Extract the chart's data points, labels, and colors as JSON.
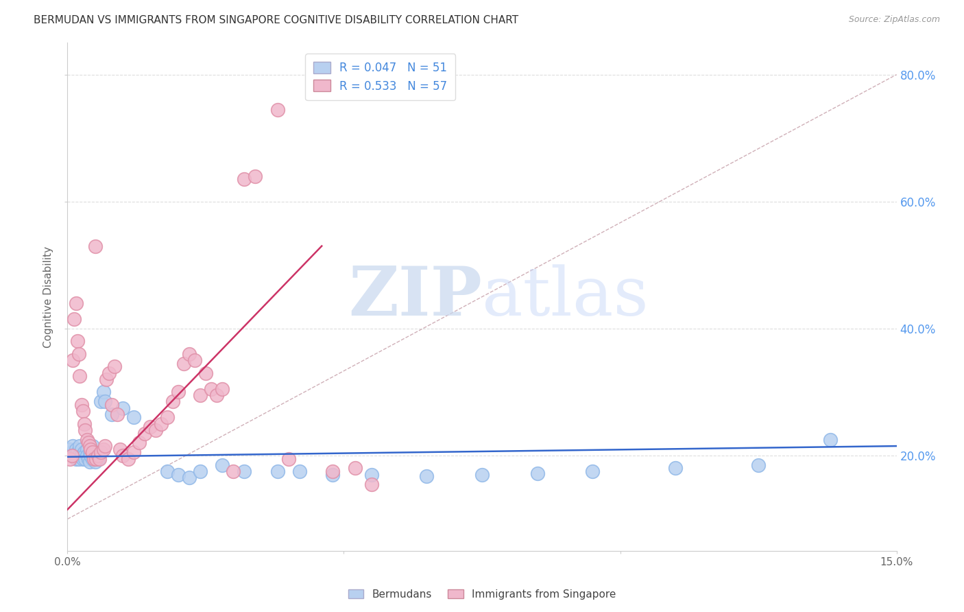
{
  "title": "BERMUDAN VS IMMIGRANTS FROM SINGAPORE COGNITIVE DISABILITY CORRELATION CHART",
  "source": "Source: ZipAtlas.com",
  "ylabel": "Cognitive Disability",
  "xmin": 0.0,
  "xmax": 0.15,
  "ymin": 0.05,
  "ymax": 0.85,
  "yticks": [
    0.2,
    0.4,
    0.6,
    0.8
  ],
  "ytick_labels": [
    "20.0%",
    "40.0%",
    "60.0%",
    "80.0%"
  ],
  "bermudan_color": "#b8d0f0",
  "bermudan_edge": "#90b8e8",
  "singapore_color": "#f0b8cc",
  "singapore_edge": "#e090a8",
  "trendline_bermudan_color": "#3366cc",
  "trendline_singapore_color": "#cc3366",
  "diagonal_color": "#d0b0b8",
  "watermark_zip": "ZIP",
  "watermark_atlas": "atlas",
  "bermudan_scatter": [
    [
      0.0005,
      0.21
    ],
    [
      0.0008,
      0.205
    ],
    [
      0.001,
      0.215
    ],
    [
      0.0012,
      0.2
    ],
    [
      0.0015,
      0.195
    ],
    [
      0.0015,
      0.21
    ],
    [
      0.0018,
      0.205
    ],
    [
      0.002,
      0.2
    ],
    [
      0.002,
      0.195
    ],
    [
      0.0022,
      0.215
    ],
    [
      0.0025,
      0.21
    ],
    [
      0.0025,
      0.2
    ],
    [
      0.0028,
      0.195
    ],
    [
      0.003,
      0.205
    ],
    [
      0.003,
      0.2
    ],
    [
      0.0032,
      0.195
    ],
    [
      0.0035,
      0.21
    ],
    [
      0.0035,
      0.2
    ],
    [
      0.0038,
      0.195
    ],
    [
      0.004,
      0.205
    ],
    [
      0.004,
      0.19
    ],
    [
      0.0042,
      0.2
    ],
    [
      0.0045,
      0.195
    ],
    [
      0.0045,
      0.215
    ],
    [
      0.0048,
      0.205
    ],
    [
      0.005,
      0.2
    ],
    [
      0.005,
      0.19
    ],
    [
      0.0055,
      0.195
    ],
    [
      0.006,
      0.285
    ],
    [
      0.0065,
      0.3
    ],
    [
      0.0068,
      0.285
    ],
    [
      0.008,
      0.265
    ],
    [
      0.01,
      0.275
    ],
    [
      0.012,
      0.26
    ],
    [
      0.018,
      0.175
    ],
    [
      0.02,
      0.17
    ],
    [
      0.022,
      0.165
    ],
    [
      0.024,
      0.175
    ],
    [
      0.028,
      0.185
    ],
    [
      0.032,
      0.175
    ],
    [
      0.038,
      0.175
    ],
    [
      0.042,
      0.175
    ],
    [
      0.048,
      0.17
    ],
    [
      0.055,
      0.17
    ],
    [
      0.065,
      0.168
    ],
    [
      0.075,
      0.17
    ],
    [
      0.085,
      0.172
    ],
    [
      0.095,
      0.175
    ],
    [
      0.11,
      0.18
    ],
    [
      0.125,
      0.185
    ],
    [
      0.138,
      0.225
    ]
  ],
  "singapore_scatter": [
    [
      0.0005,
      0.195
    ],
    [
      0.0008,
      0.2
    ],
    [
      0.001,
      0.35
    ],
    [
      0.0012,
      0.415
    ],
    [
      0.0015,
      0.44
    ],
    [
      0.0018,
      0.38
    ],
    [
      0.002,
      0.36
    ],
    [
      0.0022,
      0.325
    ],
    [
      0.0025,
      0.28
    ],
    [
      0.0028,
      0.27
    ],
    [
      0.003,
      0.25
    ],
    [
      0.0032,
      0.24
    ],
    [
      0.0035,
      0.225
    ],
    [
      0.0038,
      0.22
    ],
    [
      0.004,
      0.215
    ],
    [
      0.0042,
      0.21
    ],
    [
      0.0045,
      0.205
    ],
    [
      0.0048,
      0.195
    ],
    [
      0.005,
      0.53
    ],
    [
      0.0052,
      0.195
    ],
    [
      0.0055,
      0.2
    ],
    [
      0.0058,
      0.195
    ],
    [
      0.006,
      0.205
    ],
    [
      0.0065,
      0.21
    ],
    [
      0.0068,
      0.215
    ],
    [
      0.007,
      0.32
    ],
    [
      0.0075,
      0.33
    ],
    [
      0.008,
      0.28
    ],
    [
      0.0085,
      0.34
    ],
    [
      0.009,
      0.265
    ],
    [
      0.0095,
      0.21
    ],
    [
      0.01,
      0.2
    ],
    [
      0.011,
      0.195
    ],
    [
      0.012,
      0.205
    ],
    [
      0.013,
      0.22
    ],
    [
      0.014,
      0.235
    ],
    [
      0.015,
      0.245
    ],
    [
      0.016,
      0.24
    ],
    [
      0.017,
      0.25
    ],
    [
      0.018,
      0.26
    ],
    [
      0.019,
      0.285
    ],
    [
      0.02,
      0.3
    ],
    [
      0.021,
      0.345
    ],
    [
      0.022,
      0.36
    ],
    [
      0.023,
      0.35
    ],
    [
      0.024,
      0.295
    ],
    [
      0.025,
      0.33
    ],
    [
      0.026,
      0.305
    ],
    [
      0.027,
      0.295
    ],
    [
      0.028,
      0.305
    ],
    [
      0.032,
      0.635
    ],
    [
      0.034,
      0.64
    ],
    [
      0.038,
      0.745
    ],
    [
      0.04,
      0.195
    ],
    [
      0.048,
      0.175
    ],
    [
      0.03,
      0.175
    ],
    [
      0.052,
      0.18
    ],
    [
      0.055,
      0.155
    ]
  ],
  "singapore_trendline_x": [
    0.0,
    0.046
  ],
  "singapore_trendline_y": [
    0.115,
    0.53
  ],
  "bermudan_trendline_x": [
    0.0,
    0.15
  ],
  "bermudan_trendline_y": [
    0.198,
    0.215
  ]
}
